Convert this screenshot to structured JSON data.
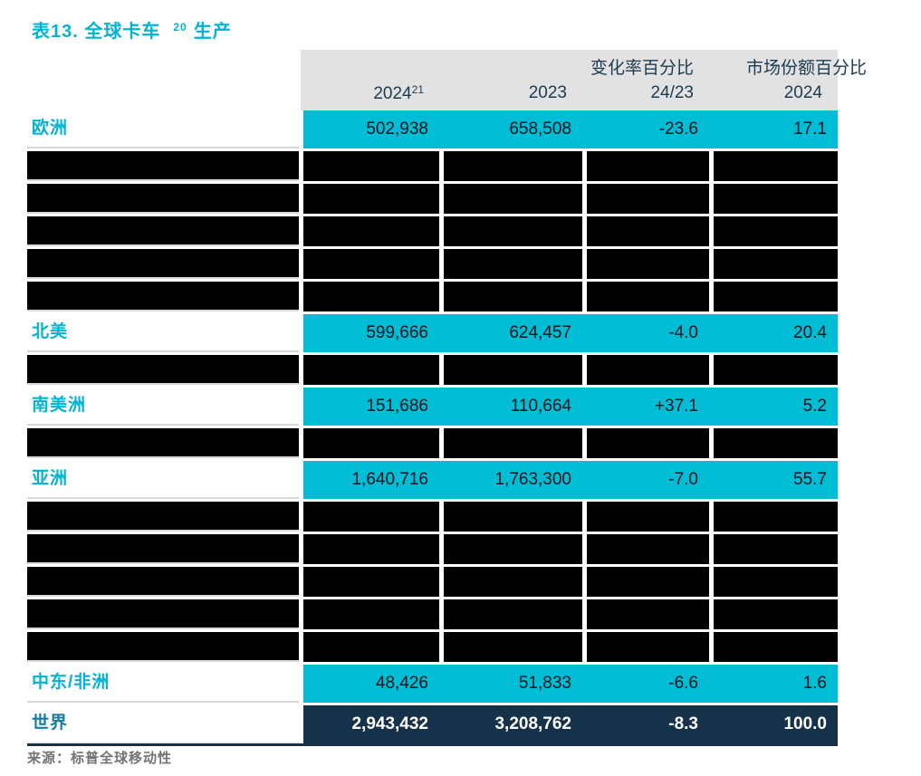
{
  "title": {
    "prefix": "表13. 全球卡车",
    "footnote": "20",
    "suffix": "生产"
  },
  "header": {
    "change_label": "变化率百分比",
    "share_label": "市场份额百分比",
    "col1_year": "2024",
    "col1_footnote": "21",
    "col2_year": "2023",
    "col3_period": "24/23",
    "col4_year": "2024"
  },
  "rows": [
    {
      "type": "data",
      "label": "欧洲",
      "values": [
        "502,938",
        "658,508",
        "-23.6",
        "17.1"
      ]
    },
    {
      "type": "empty"
    },
    {
      "type": "empty"
    },
    {
      "type": "empty"
    },
    {
      "type": "empty"
    },
    {
      "type": "empty"
    },
    {
      "type": "data",
      "label": "北美",
      "values": [
        "599,666",
        "624,457",
        "-4.0",
        "20.4"
      ]
    },
    {
      "type": "empty"
    },
    {
      "type": "data",
      "label": "南美洲",
      "values": [
        "151,686",
        "110,664",
        "+37.1",
        "5.2"
      ]
    },
    {
      "type": "empty"
    },
    {
      "type": "data",
      "label": "亚洲",
      "values": [
        "1,640,716",
        "1,763,300",
        "-7.0",
        "55.7"
      ]
    },
    {
      "type": "empty"
    },
    {
      "type": "empty"
    },
    {
      "type": "empty"
    },
    {
      "type": "empty"
    },
    {
      "type": "empty"
    },
    {
      "type": "data",
      "label": "中东/非洲",
      "values": [
        "48,426",
        "51,833",
        "-6.6",
        "1.6"
      ]
    },
    {
      "type": "total",
      "label": "世界",
      "values": [
        "2,943,432",
        "3,208,762",
        "-8.3",
        "100.0"
      ]
    }
  ],
  "source": "来源：标普全球移动性",
  "colors": {
    "accent_cyan": "#00BDD6",
    "label_cyan": "#00B4D2",
    "total_navy": "#16324A",
    "header_band_gray": "#E2E2E2",
    "header_text_navy": "#1C3B50",
    "redacted_black": "#000000",
    "source_gray": "#737373"
  }
}
